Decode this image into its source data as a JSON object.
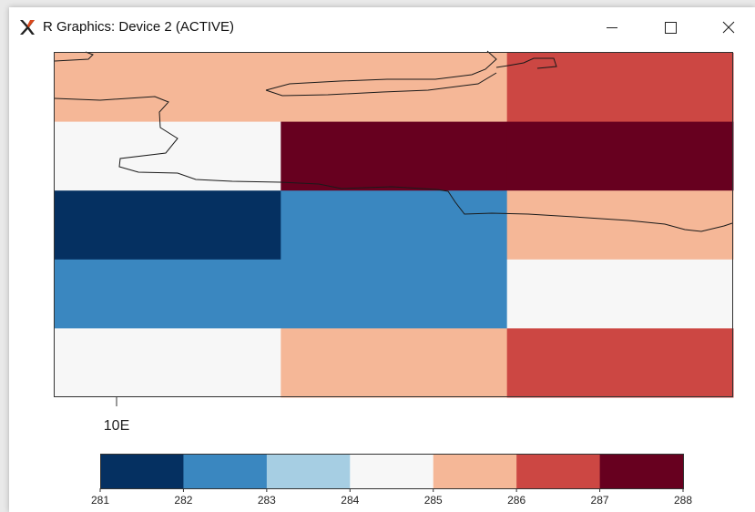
{
  "window": {
    "title": "R Graphics: Device 2 (ACTIVE)",
    "icons": {
      "app": "r-x-logo-icon",
      "minimize": "minimize-icon",
      "maximize": "maximize-icon",
      "close": "close-icon"
    }
  },
  "chart_data": {
    "type": "heatmap",
    "title": "",
    "xlabel": "",
    "ylabel": "",
    "x_tick_labels": [
      "10E"
    ],
    "grid": false,
    "colorbar": {
      "placement": "bottom",
      "breaks": [
        281,
        282,
        283,
        284,
        285,
        286,
        287,
        288
      ],
      "tick_labels": [
        "281",
        "282",
        "283",
        "284",
        "285",
        "286",
        "287",
        "288"
      ],
      "colors": [
        "#053061",
        "#3a87c0",
        "#a6cee3",
        "#f7f7f7",
        "#f5b797",
        "#cc4743",
        "#67001f"
      ]
    },
    "grid_values": [
      [
        285.5,
        285.5,
        286.5
      ],
      [
        284.5,
        287.5,
        287.5
      ],
      [
        281.5,
        282.5,
        285.5
      ],
      [
        282.5,
        282.5,
        284.5
      ],
      [
        284.5,
        285.5,
        286.5
      ]
    ],
    "coastlines": true
  }
}
